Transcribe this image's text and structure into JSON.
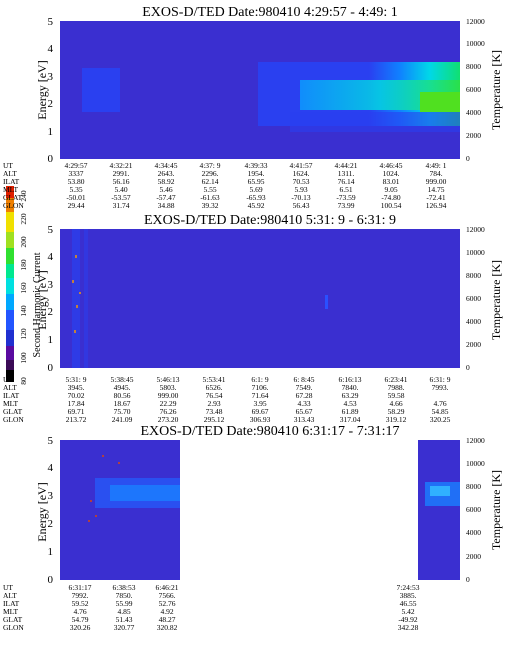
{
  "colorbar": {
    "label": "Second Harmonic Current",
    "ticks": [
      "80",
      "100",
      "120",
      "140",
      "160",
      "180",
      "200",
      "220",
      "240"
    ],
    "colors": [
      "#000000",
      "#3a0a55",
      "#5a0aa0",
      "#2030d0",
      "#2255ff",
      "#00a8ff",
      "#00e0e0",
      "#00e890",
      "#30e030",
      "#a0e020",
      "#f0e000",
      "#f08000",
      "#e02000"
    ]
  },
  "panels": [
    {
      "title": "EXOS-D/TED  Date:980410  4:29:57 - 4:49: 1",
      "ylabel": "Energy [eV]",
      "ylabel_right": "Temperature [K]",
      "yticks": [
        "0",
        "1",
        "2",
        "3",
        "4",
        "5"
      ],
      "rticks": [
        "0",
        "2000",
        "4000",
        "6000",
        "8000",
        "10000",
        "12000"
      ],
      "orbit": {
        "labels": [
          "UT",
          "ALT",
          "ILAT",
          "MLT",
          "GLAT",
          "GLON"
        ],
        "columns": [
          [
            "4:29:57",
            "3337",
            "53.80",
            "5.35",
            "-50.01",
            "29.44"
          ],
          [
            "4:32:21",
            "2991.",
            "56.16",
            "5.40",
            "-53.57",
            "31.74"
          ],
          [
            "4:34:45",
            "2643.",
            "58.92",
            "5.46",
            "-57.47",
            "34.88"
          ],
          [
            "4:37: 9",
            "2296.",
            "62.14",
            "5.55",
            "-61.63",
            "39.32"
          ],
          [
            "4:39:33",
            "1954.",
            "65.95",
            "5.69",
            "-65.93",
            "45.92"
          ],
          [
            "4:41:57",
            "1624.",
            "70.53",
            "5.93",
            "-70.13",
            "56.43"
          ],
          [
            "4:44:21",
            "1311.",
            "76.14",
            "6.51",
            "-73.59",
            "73.99"
          ],
          [
            "4:46:45",
            "1024.",
            "83.01",
            "9.05",
            "-74.80",
            "100.54"
          ],
          [
            "4:49: 1",
            "784.",
            "999.00",
            "14.75",
            "-72.41",
            "126.94"
          ]
        ]
      }
    },
    {
      "title": "EXOS-D/TED  Date:980410  5:31: 9 - 6:31: 9",
      "ylabel": "Energy [eV]",
      "ylabel_right": "Temperature [K]",
      "yticks": [
        "0",
        "1",
        "2",
        "3",
        "4",
        "5"
      ],
      "rticks": [
        "0",
        "2000",
        "4000",
        "6000",
        "8000",
        "10000",
        "12000"
      ],
      "orbit": {
        "labels": [
          "UT",
          "ALT",
          "ILAT",
          "MLT",
          "GLAT",
          "GLON"
        ],
        "columns": [
          [
            "5:31: 9",
            "3945.",
            "70.02",
            "17.84",
            "69.71",
            "213.72"
          ],
          [
            "5:38:45",
            "4945.",
            "80.56",
            "18.67",
            "75.70",
            "241.09"
          ],
          [
            "5:46:13",
            "5803.",
            "999.00",
            "22.29",
            "76.26",
            "273.20"
          ],
          [
            "5:53:41",
            "6526.",
            "76.54",
            "2.93",
            "73.48",
            "295.12"
          ],
          [
            "6:1: 9",
            "7106.",
            "71.64",
            "3.95",
            "69.67",
            "306.93"
          ],
          [
            "6: 8:45",
            "7549.",
            "67.28",
            "4.33",
            "65.67",
            "313.43"
          ],
          [
            "6:16:13",
            "7840.",
            "63.29",
            "4.53",
            "61.89",
            "317.04"
          ],
          [
            "6:23:41",
            "7988.",
            "59.58",
            "4.66",
            "58.29",
            "319.12"
          ],
          [
            "6:31: 9",
            "7993.",
            "",
            "4.76",
            "54.85",
            "320.25"
          ]
        ]
      }
    },
    {
      "title": "EXOS-D/TED  Date:980410  6:31:17 - 7:31:17",
      "ylabel": "Energy [eV]",
      "ylabel_right": "Temperature [K]",
      "yticks": [
        "0",
        "1",
        "2",
        "3",
        "4",
        "5"
      ],
      "rticks": [
        "0",
        "2000",
        "4000",
        "6000",
        "8000",
        "10000",
        "12000"
      ],
      "orbit": {
        "labels": [
          "UT",
          "ALT",
          "ILAT",
          "MLT",
          "GLAT",
          "GLON"
        ],
        "columns": [
          [
            "6:31:17",
            "7992.",
            "59.52",
            "4.76",
            "54.79",
            "320.26"
          ],
          [
            "6:38:53",
            "7850.",
            "55.99",
            "4.85",
            "51.43",
            "320.77"
          ],
          [
            "6:46:21",
            "7566.",
            "52.76",
            "4.92",
            "48.27",
            "320.82"
          ],
          [
            "7:24:53",
            "3885.",
            "46.55",
            "5.42",
            "-49.92",
            "342.28"
          ]
        ]
      }
    }
  ],
  "chart_data": [
    {
      "type": "heatmap",
      "title": "EXOS-D/TED  Date:980410  4:29:57 - 4:49: 1",
      "xlabel": "UT",
      "ylabel": "Energy [eV]",
      "y2label": "Temperature [K]",
      "ylim": [
        0,
        5
      ],
      "y2lim": [
        0,
        12000
      ],
      "x": [
        "4:29:57",
        "4:32:21",
        "4:34:45",
        "4:37: 9",
        "4:39:33",
        "4:41:57",
        "4:44:21",
        "4:46:45",
        "4:49: 1"
      ],
      "colorbar_label": "Second Harmonic Current",
      "colorbar_range": [
        80,
        240
      ]
    },
    {
      "type": "heatmap",
      "title": "EXOS-D/TED  Date:980410  5:31: 9 - 6:31: 9",
      "xlabel": "UT",
      "ylabel": "Energy [eV]",
      "y2label": "Temperature [K]",
      "ylim": [
        0,
        5
      ],
      "y2lim": [
        0,
        12000
      ],
      "x": [
        "5:31: 9",
        "5:38:45",
        "5:46:13",
        "5:53:41",
        "6:1: 9",
        "6: 8:45",
        "6:16:13",
        "6:23:41",
        "6:31: 9"
      ]
    },
    {
      "type": "heatmap",
      "title": "EXOS-D/TED  Date:980410  6:31:17 - 7:31:17",
      "xlabel": "UT",
      "ylabel": "Energy [eV]",
      "y2label": "Temperature [K]",
      "ylim": [
        0,
        5
      ],
      "y2lim": [
        0,
        12000
      ],
      "x": [
        "6:31:17",
        "6:38:53",
        "6:46:21",
        "7:24:53"
      ]
    }
  ]
}
